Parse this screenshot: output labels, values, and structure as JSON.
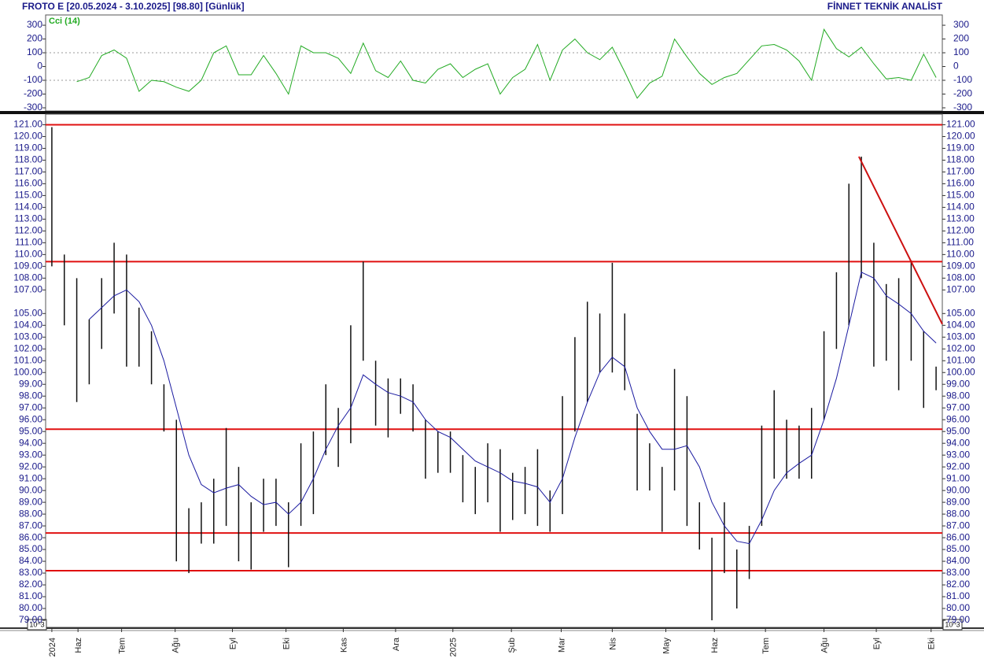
{
  "header": {
    "title": "FROTO E  [20.05.2024 - 3.10.2025]  [98.80]  [Günlük]",
    "brand": "FİNNET TEKNİK ANALİST",
    "scale_label": "10^3"
  },
  "chart_data": [
    {
      "type": "line",
      "title": "Cci (14)",
      "color": "#22aa22",
      "xlim": [
        -0.5,
        71.5
      ],
      "ylim": [
        -323,
        369
      ],
      "yticks": [
        300,
        200,
        100,
        0,
        -100,
        -200,
        -300
      ],
      "reference_lines": [
        100,
        -100
      ],
      "values": [
        null,
        null,
        -110,
        -80,
        80,
        120,
        60,
        -180,
        -100,
        -110,
        -150,
        -180,
        -100,
        100,
        150,
        -60,
        -60,
        80,
        -50,
        -200,
        150,
        100,
        100,
        60,
        -50,
        170,
        -30,
        -80,
        40,
        -100,
        -120,
        -20,
        20,
        -80,
        -20,
        20,
        -200,
        -80,
        -20,
        160,
        -100,
        120,
        200,
        100,
        50,
        140,
        -40,
        -230,
        -120,
        -70,
        200,
        70,
        -50,
        -130,
        -80,
        -50,
        50,
        150,
        160,
        120,
        40,
        -100,
        270,
        130,
        70,
        140,
        20,
        -90,
        -80,
        -100,
        90,
        -80
      ]
    },
    {
      "type": "hilo",
      "color": "#111111",
      "xlim": [
        -0.5,
        71.5
      ],
      "ylim": [
        78.4,
        121.9
      ],
      "xticks": [
        {
          "value": 0,
          "label": "2024"
        },
        {
          "value": 2.1,
          "label": "Haz"
        },
        {
          "value": 5.6,
          "label": "Tem"
        },
        {
          "value": 9.9,
          "label": "Ağu"
        },
        {
          "value": 14.5,
          "label": "Eyl"
        },
        {
          "value": 18.8,
          "label": "Eki"
        },
        {
          "value": 23.4,
          "label": "Kas"
        },
        {
          "value": 27.6,
          "label": "Ara"
        },
        {
          "value": 32.2,
          "label": "2025"
        },
        {
          "value": 36.9,
          "label": "Şub"
        },
        {
          "value": 40.9,
          "label": "Mar"
        },
        {
          "value": 45,
          "label": "Nis"
        },
        {
          "value": 49.3,
          "label": "May"
        },
        {
          "value": 53.2,
          "label": "Haz"
        },
        {
          "value": 57.3,
          "label": "Tem"
        },
        {
          "value": 62,
          "label": "Ağu"
        },
        {
          "value": 66.2,
          "label": "Eyl"
        },
        {
          "value": 70.6,
          "label": "Eki"
        }
      ],
      "yticks": [
        {
          "value": 121,
          "label": "121.00"
        },
        {
          "value": 120,
          "label": "120.00"
        },
        {
          "value": 119,
          "label": "119.00"
        },
        {
          "value": 118,
          "label": "118.00"
        },
        {
          "value": 117,
          "label": "117.00"
        },
        {
          "value": 116,
          "label": "116.00"
        },
        {
          "value": 115,
          "label": "115.00"
        },
        {
          "value": 114,
          "label": "114.00"
        },
        {
          "value": 113,
          "label": "113.00"
        },
        {
          "value": 112,
          "label": "112.00"
        },
        {
          "value": 111,
          "label": "111.00"
        },
        {
          "value": 110,
          "label": "110.00"
        },
        {
          "value": 109,
          "label": "109.00"
        },
        {
          "value": 108,
          "label": "108.00"
        },
        {
          "value": 107,
          "label": "107.00"
        },
        {
          "value": 105,
          "label": "105.00"
        },
        {
          "value": 104,
          "label": "104.00"
        },
        {
          "value": 103,
          "label": "103.00"
        },
        {
          "value": 102,
          "label": "102.00"
        },
        {
          "value": 101,
          "label": "101.00"
        },
        {
          "value": 100,
          "label": "100.00"
        },
        {
          "value": 99,
          "label": "99.00"
        },
        {
          "value": 98,
          "label": "98.00"
        },
        {
          "value": 97,
          "label": "97.00"
        },
        {
          "value": 96,
          "label": "96.00"
        },
        {
          "value": 95,
          "label": "95.00"
        },
        {
          "value": 94,
          "label": "94.00"
        },
        {
          "value": 93,
          "label": "93.00"
        },
        {
          "value": 92,
          "label": "92.00"
        },
        {
          "value": 91,
          "label": "91.00"
        },
        {
          "value": 90,
          "label": "90.00"
        },
        {
          "value": 89,
          "label": "89.00"
        },
        {
          "value": 88,
          "label": "88.00"
        },
        {
          "value": 87,
          "label": "87.00"
        },
        {
          "value": 86,
          "label": "86.00"
        },
        {
          "value": 85,
          "label": "85.00"
        },
        {
          "value": 84,
          "label": "84.00"
        },
        {
          "value": 83,
          "label": "83.00"
        },
        {
          "value": 82,
          "label": "82.00"
        },
        {
          "value": 81,
          "label": "81.00"
        },
        {
          "value": 80,
          "label": "80.00"
        },
        {
          "value": 79,
          "label": "79.00"
        }
      ],
      "high": [
        120.8,
        110,
        108,
        104.5,
        108,
        111,
        110,
        105.5,
        103.5,
        99,
        96,
        88.5,
        89,
        91,
        95.3,
        92,
        89,
        91,
        91,
        89,
        94,
        95,
        99,
        97,
        104,
        109.4,
        101,
        99.5,
        99.5,
        99,
        96,
        95,
        95,
        93,
        92,
        94,
        93.5,
        91.5,
        92,
        93.5,
        90,
        98,
        103,
        106,
        105,
        109.3,
        105,
        96.5,
        94,
        92,
        100.3,
        98,
        89,
        86,
        89,
        85,
        87,
        95.5,
        98.5,
        96,
        95.5,
        97,
        103.5,
        108.5,
        116,
        118.3,
        111,
        107.5,
        108,
        109.5,
        103.5,
        100.5
      ],
      "low": [
        109,
        104,
        97.5,
        99,
        102,
        105,
        100.5,
        100.5,
        99,
        95,
        84,
        83,
        85.5,
        85.5,
        87,
        84,
        83.3,
        86.5,
        87,
        83.5,
        87,
        88,
        93,
        92,
        94,
        101,
        95.5,
        94.5,
        96.5,
        95,
        91,
        91.5,
        91.5,
        89,
        88,
        89,
        86.5,
        87.5,
        88,
        87,
        86.5,
        88,
        95,
        97.5,
        100,
        100,
        98.5,
        90,
        90,
        86.5,
        90,
        87,
        85,
        79,
        83,
        80,
        82.5,
        87,
        91,
        91,
        91,
        91,
        96,
        102,
        104,
        108,
        100.5,
        101,
        98.5,
        101,
        97,
        98.5
      ],
      "ma": {
        "color": "#1a1aa0",
        "values": [
          null,
          null,
          null,
          104.5,
          105.5,
          106.5,
          107,
          106,
          104,
          101,
          97,
          93,
          90.5,
          89.8,
          90.2,
          90.5,
          89.5,
          88.8,
          89,
          88,
          89,
          91,
          93.5,
          95.5,
          97,
          99.8,
          99,
          98.3,
          98,
          97.5,
          96,
          95,
          94.5,
          93.5,
          92.5,
          92,
          91.5,
          90.8,
          90.6,
          90.3,
          89,
          91,
          94.5,
          97.5,
          100,
          101.3,
          100.5,
          97,
          95,
          93.5,
          93.5,
          93.8,
          92,
          89,
          87,
          85.7,
          85.5,
          87.5,
          90,
          91.5,
          92.3,
          93,
          96,
          99.5,
          104,
          108.5,
          108,
          106.5,
          105.8,
          105,
          103.5,
          102.5
        ]
      },
      "levels": [
        121,
        109.4,
        95.2,
        86.4,
        83.2
      ],
      "level_color": "#e01010",
      "trendline": {
        "x": [
          64.8,
          71.5
        ],
        "y": [
          118.3,
          104.1
        ],
        "color": "#cc1010"
      }
    }
  ]
}
